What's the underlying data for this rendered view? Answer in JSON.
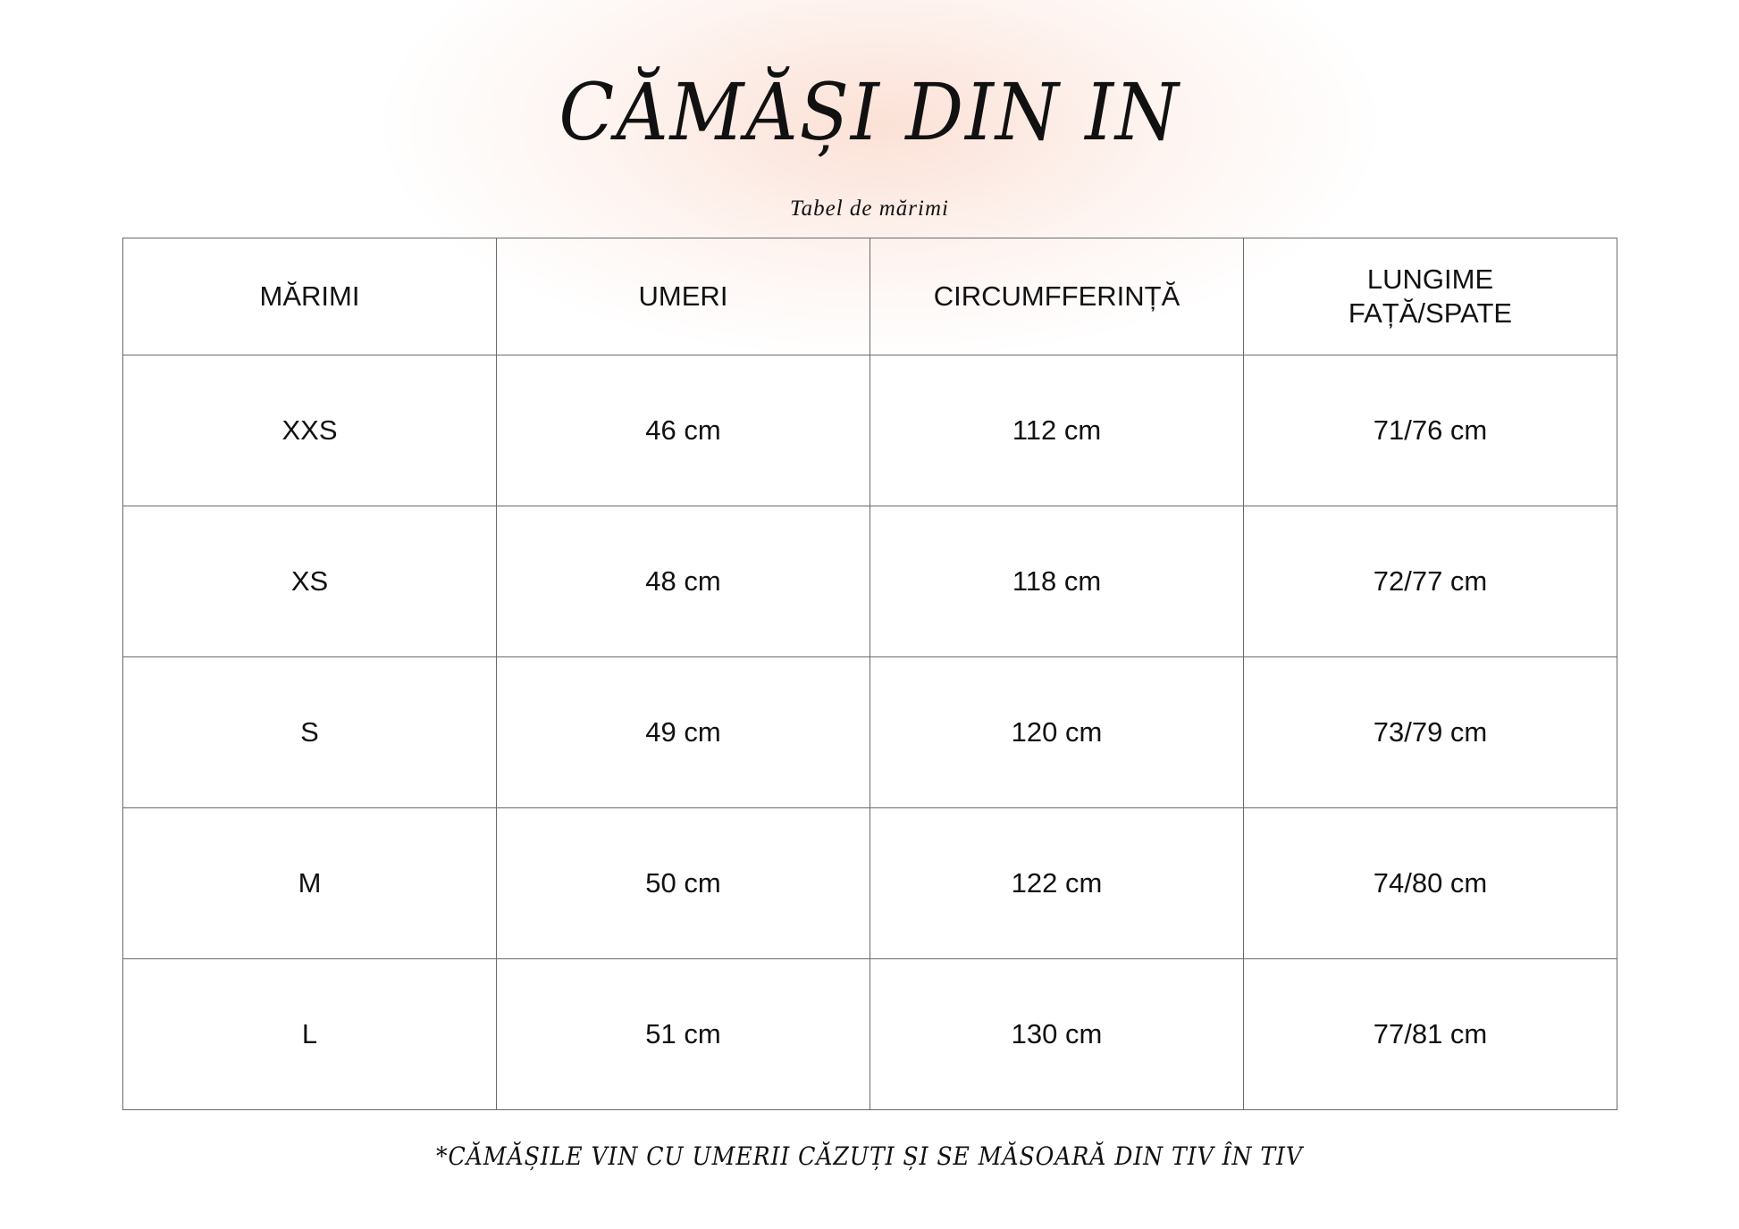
{
  "title": "CĂMĂȘI DIN IN",
  "subtitle": "Tabel de mărimi",
  "table": {
    "headers": [
      "MĂRIMI",
      "UMERI",
      "CIRCUMFFERINȚĂ",
      "LUNGIME FAȚĂ/SPATE"
    ],
    "rows": [
      [
        "XXS",
        "46 cm",
        "112 cm",
        "71/76 cm"
      ],
      [
        "XS",
        "48 cm",
        "118 cm",
        "72/77 cm"
      ],
      [
        "S",
        "49 cm",
        "120 cm",
        "73/79 cm"
      ],
      [
        "M",
        "50 cm",
        "122 cm",
        "74/80 cm"
      ],
      [
        "L",
        "51 cm",
        "130 cm",
        "77/81 cm"
      ]
    ]
  },
  "footnote": "*CĂMĂȘILE VIN CU UMERII CĂZUȚI ȘI SE MĂSOARĂ DIN TIV ÎN TIV",
  "colors": {
    "glow": "#fad7c8",
    "border": "#6a6a6a",
    "text": "#111111"
  }
}
